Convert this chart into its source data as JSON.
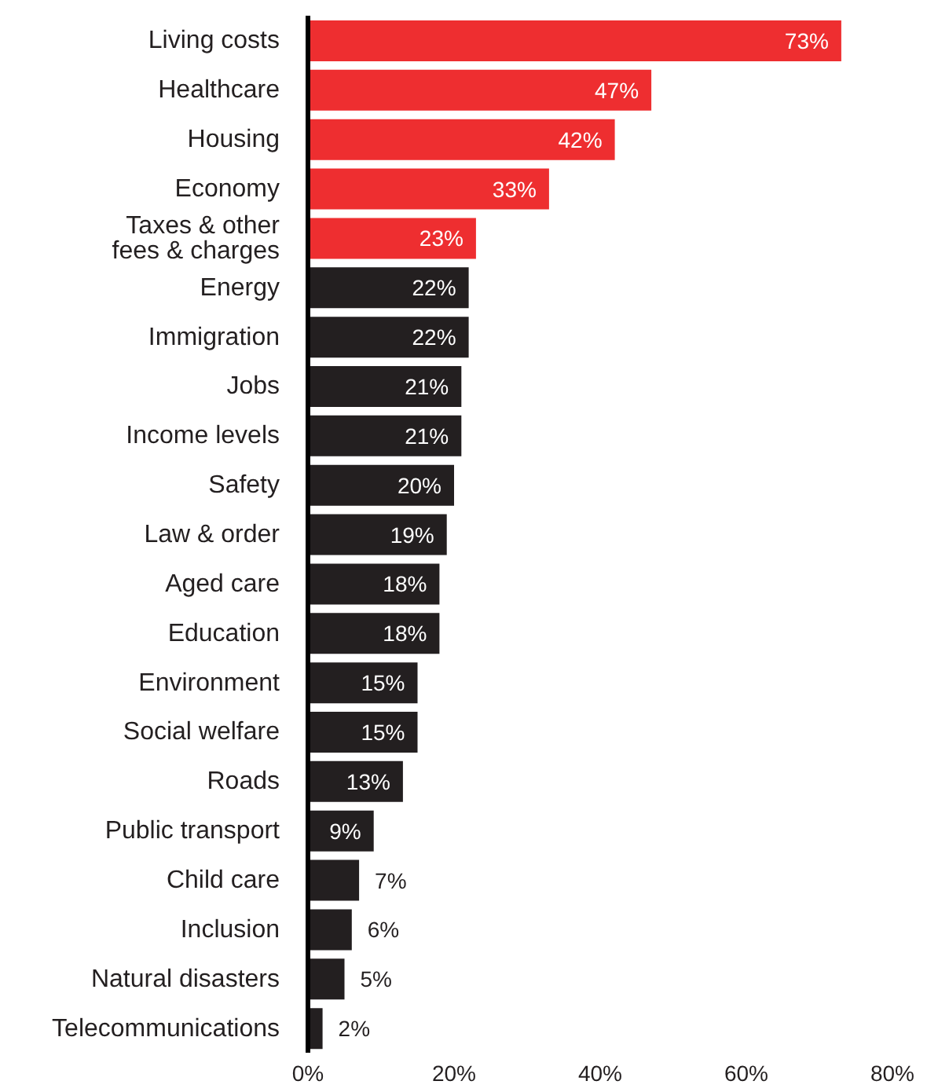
{
  "chart_data": {
    "type": "bar",
    "orientation": "horizontal",
    "categories": [
      "Living costs",
      "Healthcare",
      "Housing",
      "Economy",
      "Taxes & other\nfees & charges",
      "Energy",
      "Immigration",
      "Jobs",
      "Income levels",
      "Safety",
      "Law & order",
      "Aged care",
      "Education",
      "Environment",
      "Social welfare",
      "Roads",
      "Public transport",
      "Child care",
      "Inclusion",
      "Natural disasters",
      "Telecommunications"
    ],
    "values": [
      73,
      47,
      42,
      33,
      23,
      22,
      22,
      21,
      21,
      20,
      19,
      18,
      18,
      15,
      15,
      13,
      9,
      7,
      6,
      5,
      2
    ],
    "colors": [
      "#ee2e30",
      "#ee2e30",
      "#ee2e30",
      "#ee2e30",
      "#ee2e30",
      "#231f20",
      "#231f20",
      "#231f20",
      "#231f20",
      "#231f20",
      "#231f20",
      "#231f20",
      "#231f20",
      "#231f20",
      "#231f20",
      "#231f20",
      "#231f20",
      "#231f20",
      "#231f20",
      "#231f20",
      "#231f20"
    ],
    "value_labels": [
      "73%",
      "47%",
      "42%",
      "33%",
      "23%",
      "22%",
      "22%",
      "21%",
      "21%",
      "20%",
      "19%",
      "18%",
      "18%",
      "15%",
      "15%",
      "13%",
      "9%",
      "7%",
      "6%",
      "5%",
      "2%"
    ],
    "xlim": [
      0,
      80
    ],
    "xticks": [
      {
        "value": 0,
        "label": "0%"
      },
      {
        "value": 20,
        "label": "20%"
      },
      {
        "value": 40,
        "label": "40%"
      },
      {
        "value": 60,
        "label": "60%"
      },
      {
        "value": 80,
        "label": "80%"
      }
    ],
    "grid": false
  }
}
